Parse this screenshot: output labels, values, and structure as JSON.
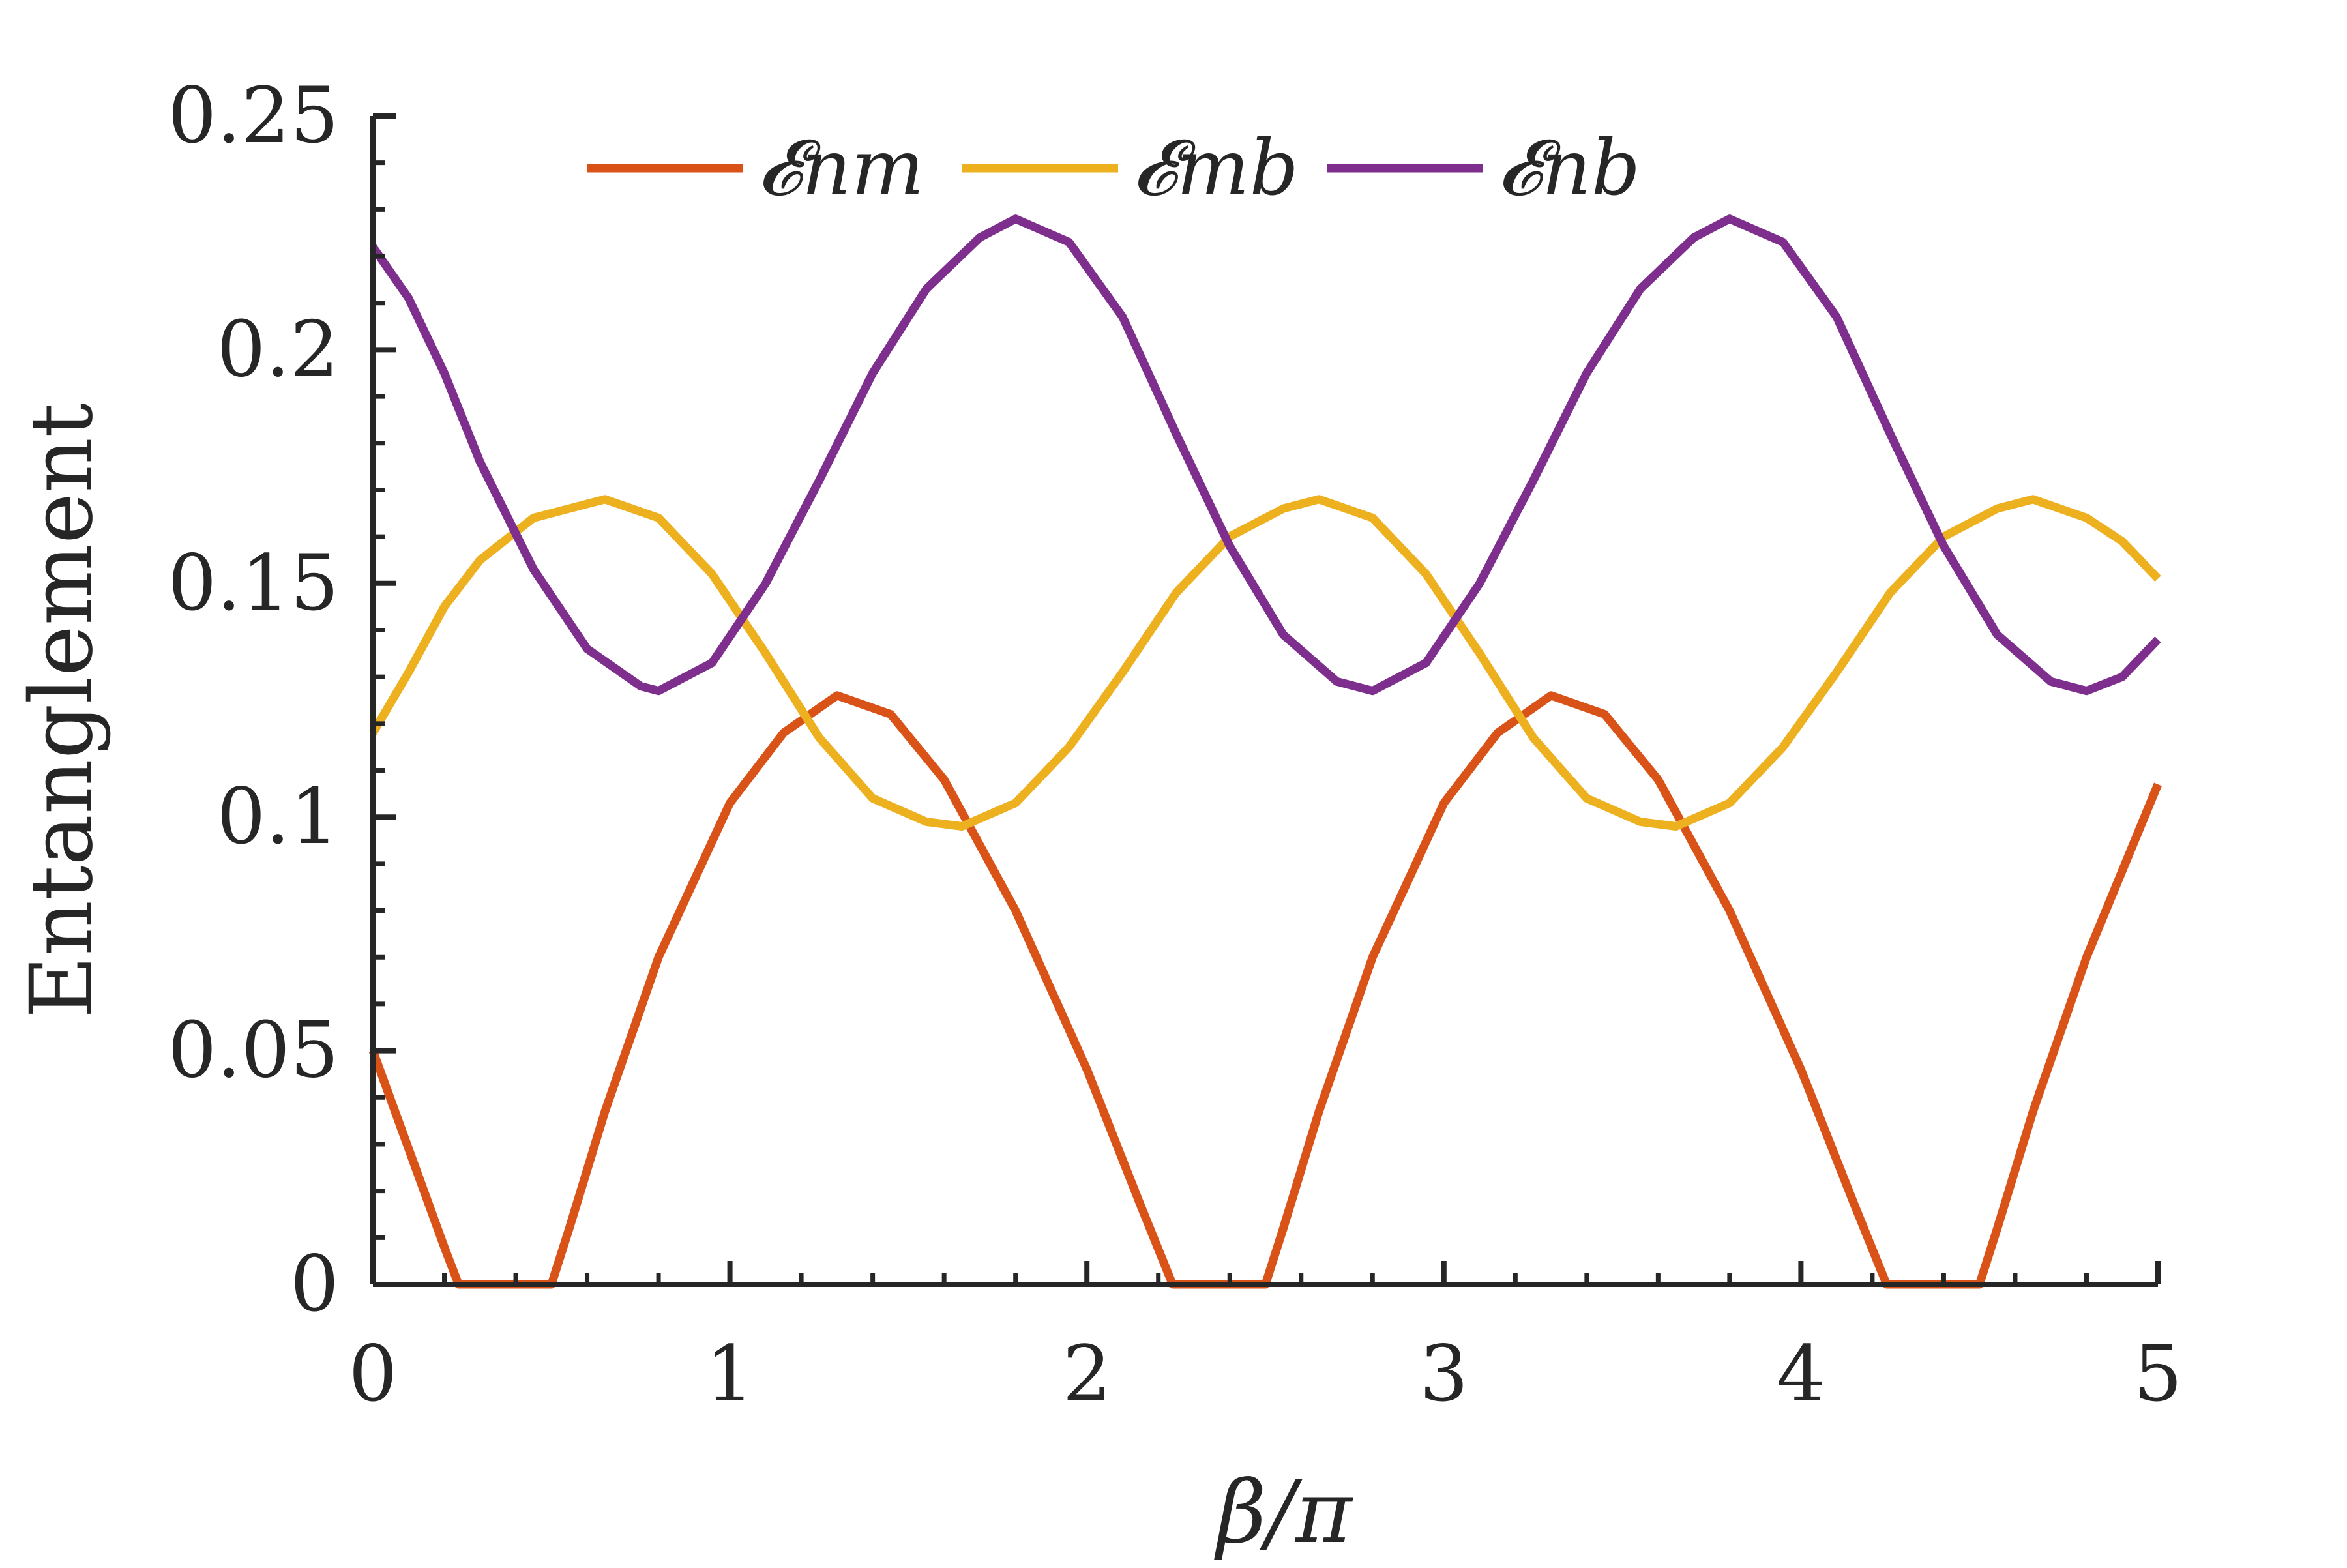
{
  "chart_data": {
    "type": "line",
    "title": "",
    "xlabel": "β/π",
    "ylabel": "Entanglement",
    "xlim": [
      0,
      5
    ],
    "ylim": [
      0,
      0.25
    ],
    "x_ticks": [
      0,
      1,
      2,
      3,
      4,
      5
    ],
    "x_tick_labels": [
      "0",
      "1",
      "2",
      "3",
      "4",
      "5"
    ],
    "y_ticks": [
      0,
      0.05,
      0.1,
      0.15,
      0.2,
      0.25
    ],
    "y_tick_labels": [
      "0",
      "0.05",
      "0.1",
      "0.15",
      "0.2",
      "0.25"
    ],
    "grid": false,
    "legend_position": "top",
    "axis_color": "#262626",
    "series": [
      {
        "name": "𝓔nm",
        "color": "#D95319",
        "points": [
          [
            0,
            0.05
          ],
          [
            0.1,
            0.029
          ],
          [
            0.2,
            0.008
          ],
          [
            0.24,
            0.0
          ],
          [
            0.5,
            0.0
          ],
          [
            0.55,
            0.012
          ],
          [
            0.65,
            0.037
          ],
          [
            0.8,
            0.07
          ],
          [
            1.0,
            0.103
          ],
          [
            1.15,
            0.118
          ],
          [
            1.3,
            0.126
          ],
          [
            1.45,
            0.122
          ],
          [
            1.6,
            0.108
          ],
          [
            1.8,
            0.08
          ],
          [
            2.0,
            0.046
          ],
          [
            2.15,
            0.017
          ],
          [
            2.24,
            0.0
          ],
          [
            2.5,
            0.0
          ],
          [
            2.55,
            0.012
          ],
          [
            2.65,
            0.037
          ],
          [
            2.8,
            0.07
          ],
          [
            3.0,
            0.103
          ],
          [
            3.15,
            0.118
          ],
          [
            3.3,
            0.126
          ],
          [
            3.45,
            0.122
          ],
          [
            3.6,
            0.108
          ],
          [
            3.8,
            0.08
          ],
          [
            4.0,
            0.046
          ],
          [
            4.15,
            0.017
          ],
          [
            4.24,
            0.0
          ],
          [
            4.5,
            0.0
          ],
          [
            4.55,
            0.012
          ],
          [
            4.65,
            0.037
          ],
          [
            4.8,
            0.07
          ],
          [
            5.0,
            0.107
          ]
        ]
      },
      {
        "name": "𝓔mb",
        "color": "#EDB120",
        "points": [
          [
            0,
            0.118
          ],
          [
            0.1,
            0.131
          ],
          [
            0.2,
            0.145
          ],
          [
            0.3,
            0.155
          ],
          [
            0.45,
            0.164
          ],
          [
            0.65,
            0.168
          ],
          [
            0.8,
            0.164
          ],
          [
            0.95,
            0.152
          ],
          [
            1.1,
            0.135
          ],
          [
            1.25,
            0.117
          ],
          [
            1.4,
            0.104
          ],
          [
            1.55,
            0.099
          ],
          [
            1.65,
            0.098
          ],
          [
            1.8,
            0.103
          ],
          [
            1.95,
            0.115
          ],
          [
            2.1,
            0.131
          ],
          [
            2.25,
            0.148
          ],
          [
            2.4,
            0.16
          ],
          [
            2.55,
            0.166
          ],
          [
            2.65,
            0.168
          ],
          [
            2.8,
            0.164
          ],
          [
            2.95,
            0.152
          ],
          [
            3.1,
            0.135
          ],
          [
            3.25,
            0.117
          ],
          [
            3.4,
            0.104
          ],
          [
            3.55,
            0.099
          ],
          [
            3.65,
            0.098
          ],
          [
            3.8,
            0.103
          ],
          [
            3.95,
            0.115
          ],
          [
            4.1,
            0.131
          ],
          [
            4.25,
            0.148
          ],
          [
            4.4,
            0.16
          ],
          [
            4.55,
            0.166
          ],
          [
            4.65,
            0.168
          ],
          [
            4.8,
            0.164
          ],
          [
            4.9,
            0.159
          ],
          [
            5.0,
            0.151
          ]
        ]
      },
      {
        "name": "𝓔nb",
        "color": "#7E2F8E",
        "points": [
          [
            0,
            0.222
          ],
          [
            0.1,
            0.211
          ],
          [
            0.2,
            0.195
          ],
          [
            0.3,
            0.176
          ],
          [
            0.45,
            0.153
          ],
          [
            0.6,
            0.136
          ],
          [
            0.75,
            0.128
          ],
          [
            0.8,
            0.127
          ],
          [
            0.95,
            0.133
          ],
          [
            1.1,
            0.15
          ],
          [
            1.25,
            0.172
          ],
          [
            1.4,
            0.195
          ],
          [
            1.55,
            0.213
          ],
          [
            1.7,
            0.224
          ],
          [
            1.8,
            0.228
          ],
          [
            1.95,
            0.223
          ],
          [
            2.1,
            0.207
          ],
          [
            2.25,
            0.182
          ],
          [
            2.4,
            0.158
          ],
          [
            2.55,
            0.139
          ],
          [
            2.7,
            0.129
          ],
          [
            2.8,
            0.127
          ],
          [
            2.95,
            0.133
          ],
          [
            3.1,
            0.15
          ],
          [
            3.25,
            0.172
          ],
          [
            3.4,
            0.195
          ],
          [
            3.55,
            0.213
          ],
          [
            3.7,
            0.224
          ],
          [
            3.8,
            0.228
          ],
          [
            3.95,
            0.223
          ],
          [
            4.1,
            0.207
          ],
          [
            4.25,
            0.182
          ],
          [
            4.4,
            0.158
          ],
          [
            4.55,
            0.139
          ],
          [
            4.7,
            0.129
          ],
          [
            4.8,
            0.127
          ],
          [
            4.9,
            0.13
          ],
          [
            5.0,
            0.138
          ]
        ]
      }
    ]
  }
}
